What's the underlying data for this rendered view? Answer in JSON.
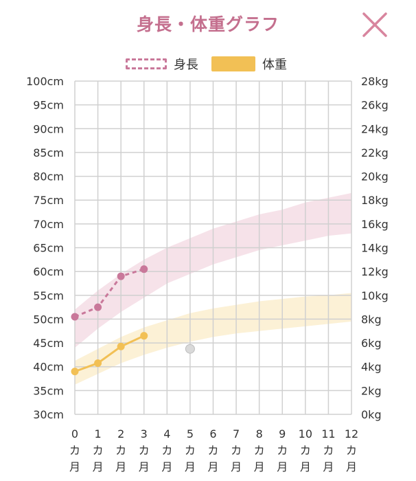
{
  "header": {
    "title": "身長・体重グラフ",
    "close_icon": "close-x-icon"
  },
  "legend": {
    "height_label": "身長",
    "weight_label": "体重"
  },
  "colors": {
    "height": "#c9789a",
    "height_band": "#f4dde5",
    "weight": "#f2c055",
    "weight_band": "#fbefcf",
    "grid": "#d0d0d0",
    "close": "#d8859e"
  },
  "chart_data": {
    "type": "line",
    "x_categories": [
      "0",
      "1",
      "2",
      "3",
      "4",
      "5",
      "6",
      "7",
      "8",
      "9",
      "10",
      "11",
      "12"
    ],
    "x_unit_chars": [
      "カ",
      "月"
    ],
    "y_left": {
      "unit": "cm",
      "range": [
        30,
        100
      ],
      "ticks": [
        "30cm",
        "35cm",
        "40cm",
        "45cm",
        "50cm",
        "55cm",
        "60cm",
        "65cm",
        "70cm",
        "75cm",
        "80cm",
        "85cm",
        "90cm",
        "95cm",
        "100cm"
      ]
    },
    "y_right": {
      "unit": "kg",
      "range": [
        0,
        28
      ],
      "ticks": [
        "0kg",
        "2kg",
        "4kg",
        "6kg",
        "8kg",
        "10kg",
        "12kg",
        "14kg",
        "16kg",
        "18kg",
        "20kg",
        "22kg",
        "24kg",
        "26kg",
        "28kg"
      ]
    },
    "grid": true,
    "legend_position": "top-center",
    "series": [
      {
        "name": "身長",
        "axis": "left",
        "style": "dashed",
        "x": [
          0,
          1,
          2,
          3
        ],
        "values": [
          50.5,
          52.5,
          59.0,
          60.5
        ]
      },
      {
        "name": "体重",
        "axis": "right",
        "style": "solid",
        "x": [
          0,
          1,
          2,
          3
        ],
        "values": [
          3.6,
          4.3,
          5.7,
          6.6
        ]
      }
    ],
    "height_reference_band": {
      "x": [
        0,
        1,
        2,
        3,
        4,
        5,
        6,
        7,
        8,
        9,
        10,
        11,
        12
      ],
      "lower": [
        44.0,
        48.0,
        51.5,
        54.5,
        57.5,
        59.5,
        61.5,
        63.0,
        64.5,
        65.5,
        66.5,
        67.5,
        68.0
      ],
      "upper": [
        52.0,
        56.0,
        59.5,
        62.5,
        65.0,
        67.0,
        69.0,
        70.5,
        72.0,
        73.0,
        74.5,
        75.5,
        76.5
      ]
    },
    "weight_reference_band": {
      "x": [
        0,
        1,
        2,
        3,
        4,
        5,
        6,
        7,
        8,
        9,
        10,
        11,
        12
      ],
      "lower": [
        2.5,
        3.4,
        4.3,
        5.0,
        5.6,
        6.1,
        6.5,
        6.8,
        7.0,
        7.2,
        7.4,
        7.6,
        7.8
      ],
      "upper": [
        4.5,
        5.5,
        6.5,
        7.3,
        7.9,
        8.5,
        8.9,
        9.2,
        9.5,
        9.7,
        9.9,
        10.0,
        10.2
      ]
    },
    "marker": {
      "x": 5,
      "axis": "right",
      "value": 5.5
    }
  }
}
